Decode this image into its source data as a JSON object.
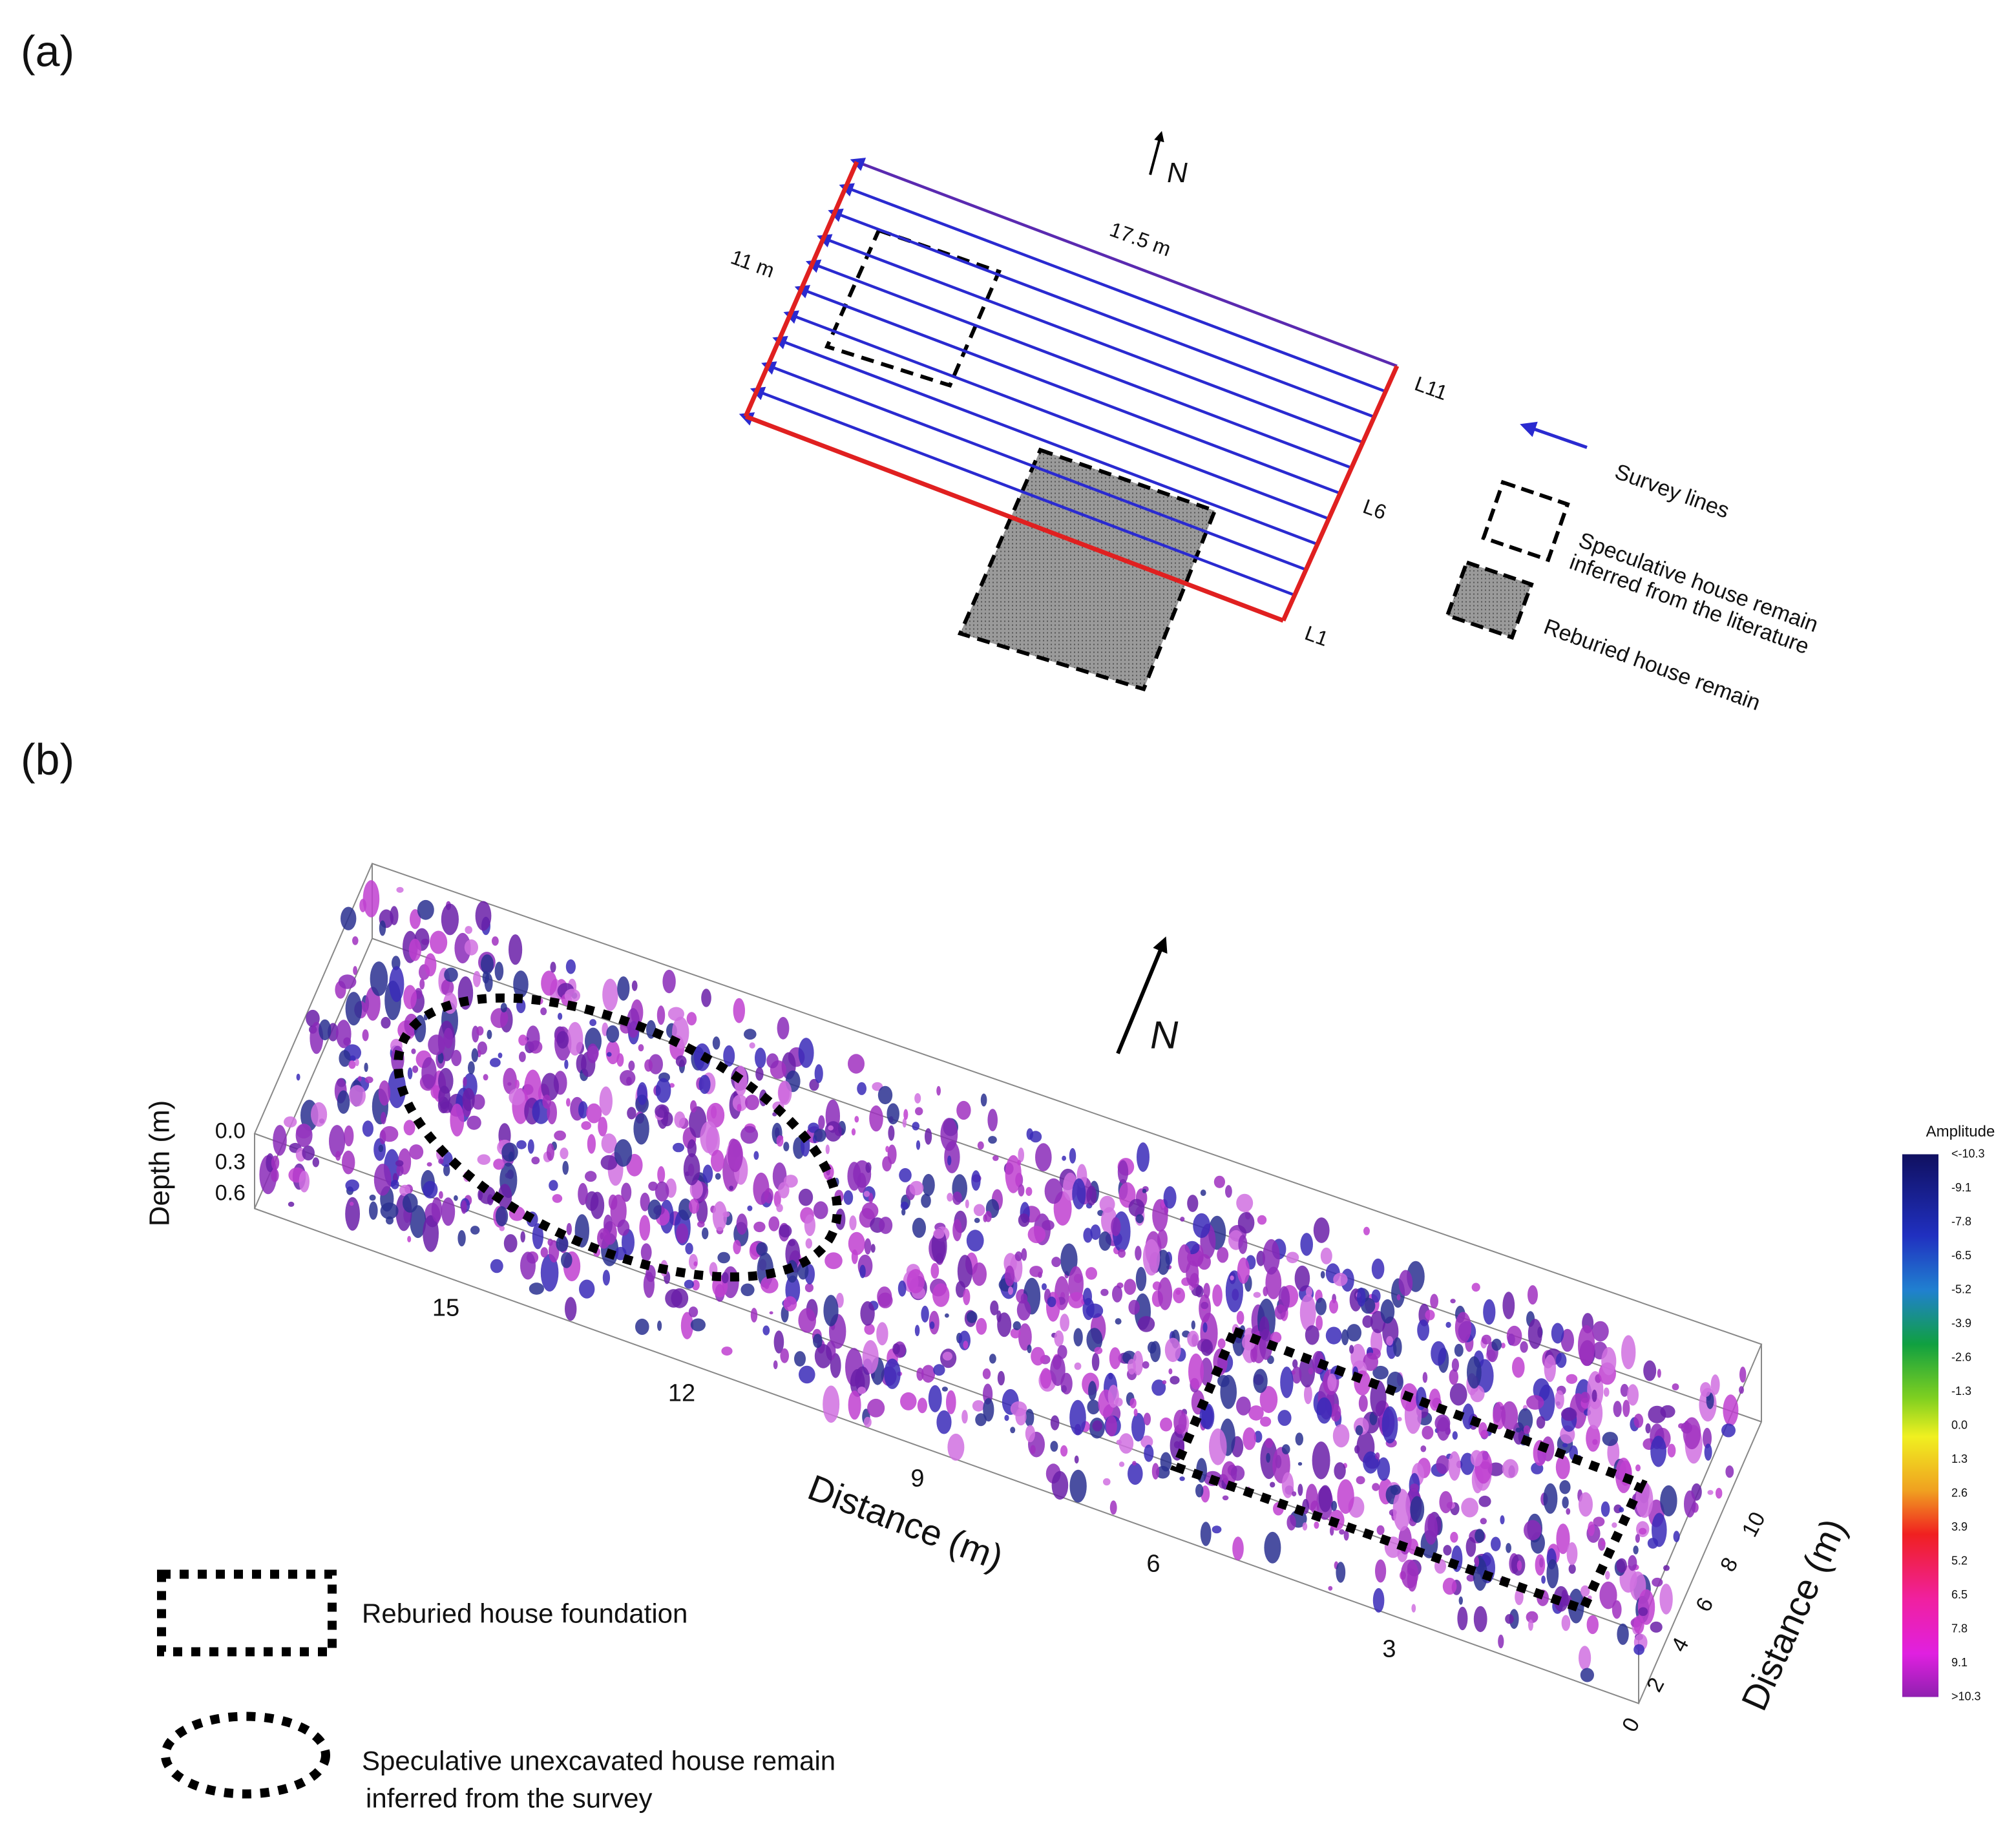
{
  "panel_a": {
    "label": "(a)",
    "north": "N",
    "length": "17.5 m",
    "width": "11 m",
    "lines": [
      "L11",
      "L6",
      "L1"
    ],
    "legend": {
      "survey_lines": "Survey lines",
      "speculative": [
        "Speculative house remain",
        "inferred from the literature"
      ],
      "reburied": "Reburied house remain"
    }
  },
  "panel_b": {
    "label": "(b)",
    "north": "N",
    "depth_axis": {
      "title": "Depth (m)",
      "ticks": [
        "0.0",
        "0.3",
        "0.6"
      ]
    },
    "distance_axis": {
      "title": "Distance (m)",
      "ticks": [
        "15",
        "12",
        "9",
        "6",
        "3"
      ]
    },
    "width_axis": {
      "title": "Distance (m)",
      "ticks": [
        "0",
        "2",
        "4",
        "6",
        "8",
        "10"
      ]
    },
    "colorbar": {
      "title": "Amplitude",
      "ticks": [
        "<-10.3",
        "-9.1",
        "-7.8",
        "-6.5",
        "-5.2",
        "-3.9",
        "-2.6",
        "-1.3",
        "0.0",
        "1.3",
        "2.6",
        "3.9",
        "5.2",
        "6.5",
        "7.8",
        "9.1",
        ">10.3"
      ]
    },
    "legend": {
      "foundation": "Reburied house foundation",
      "speculative": [
        "Speculative unexcavated house remain",
        "inferred from the survey"
      ]
    }
  }
}
